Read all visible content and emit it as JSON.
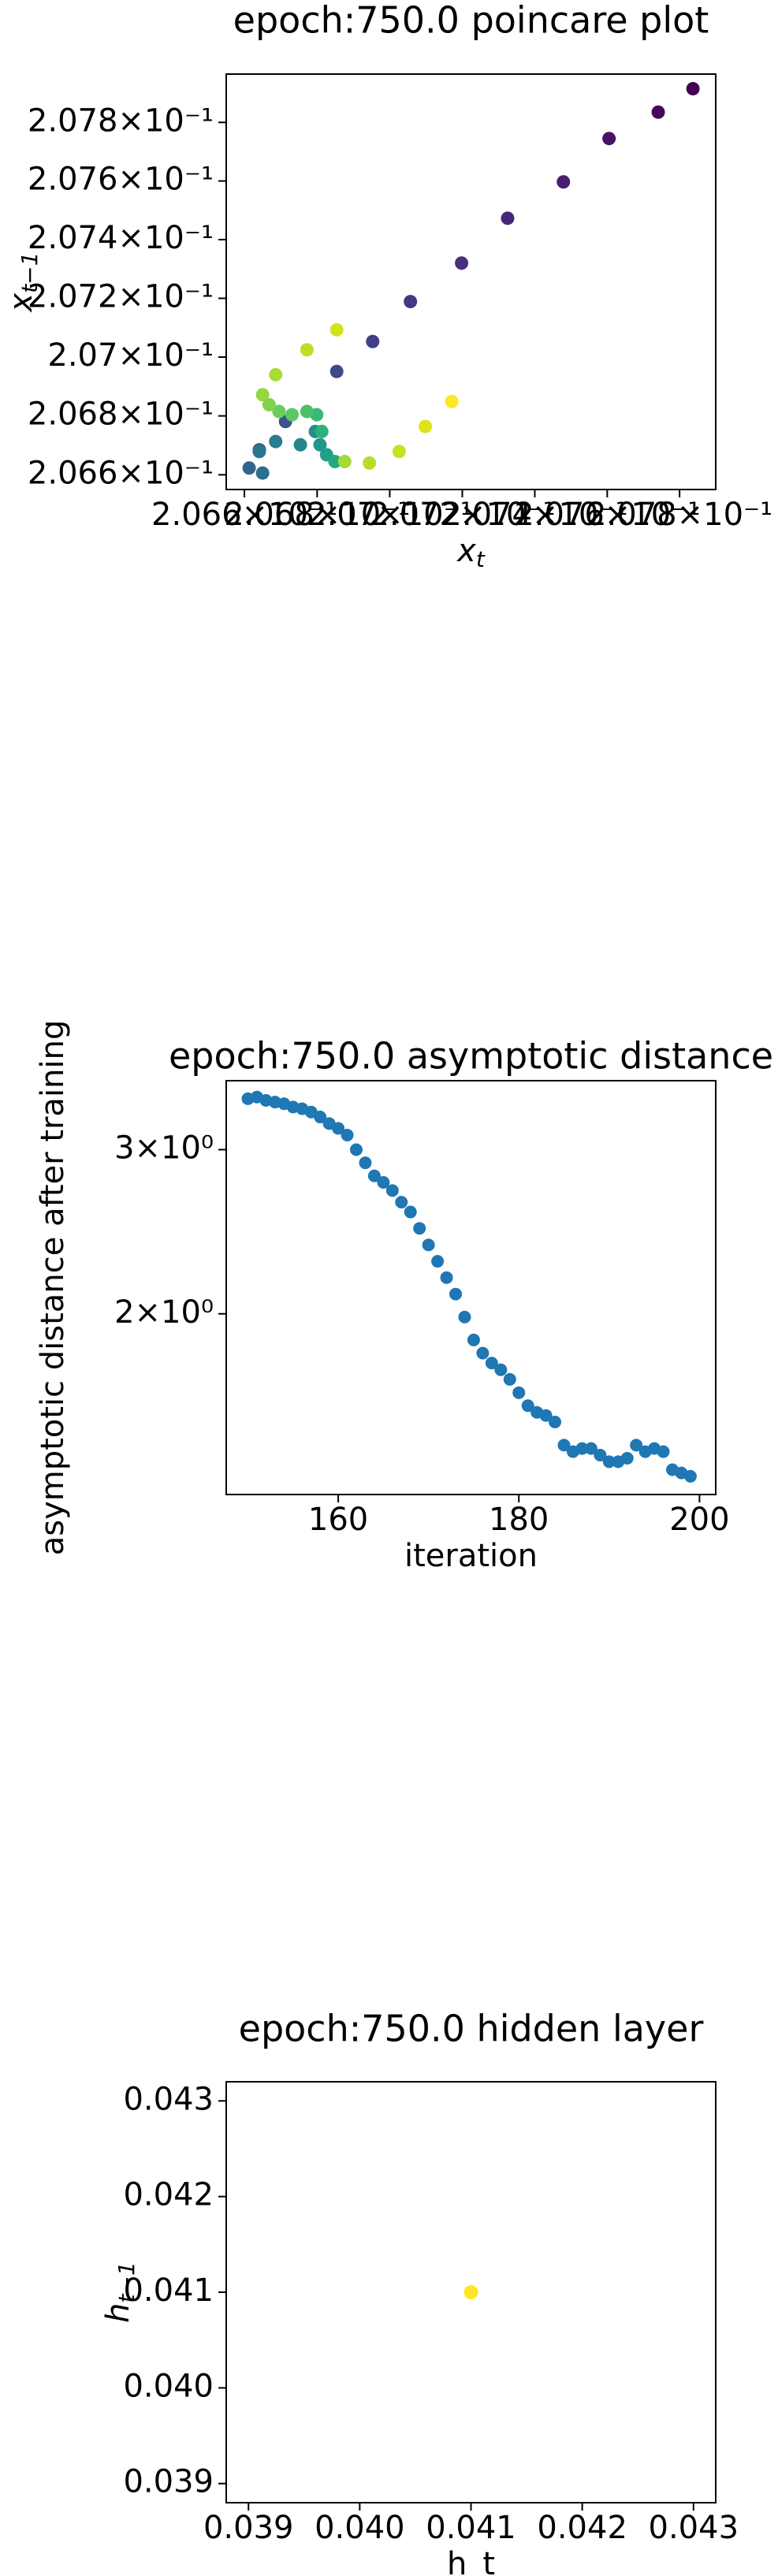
{
  "chart_data": [
    {
      "type": "scatter",
      "title": "epoch:750.0 poincare plot",
      "xlabel": "x_t",
      "ylabel": "x_{t-1}",
      "xscale": "log",
      "yscale": "log",
      "xlim": [
        0.20655,
        0.2079
      ],
      "ylim": [
        0.20655,
        0.207965
      ],
      "xticks": [
        {
          "value": 0.2066,
          "label": "2.066×10⁻¹"
        },
        {
          "value": 0.2068,
          "label": "2.068×10⁻¹"
        },
        {
          "value": 0.207,
          "label": "2.07×10⁻¹"
        },
        {
          "value": 0.2072,
          "label": "2.072×10⁻¹"
        },
        {
          "value": 0.2074,
          "label": "2.074×10⁻¹"
        },
        {
          "value": 0.2076,
          "label": "2.076×10⁻¹"
        },
        {
          "value": 0.2078,
          "label": "2.078×10⁻¹"
        }
      ],
      "yticks": [
        {
          "value": 0.2066,
          "label": "2.066×10⁻¹"
        },
        {
          "value": 0.2068,
          "label": "2.068×10⁻¹"
        },
        {
          "value": 0.207,
          "label": "2.07×10⁻¹"
        },
        {
          "value": 0.2072,
          "label": "2.072×10⁻¹"
        },
        {
          "value": 0.2074,
          "label": "2.074×10⁻¹"
        },
        {
          "value": 0.2076,
          "label": "2.076×10⁻¹"
        },
        {
          "value": 0.2078,
          "label": "2.078×10⁻¹"
        }
      ],
      "x": [
        0.207837,
        0.207741,
        0.207605,
        0.207479,
        0.207325,
        0.207198,
        0.207057,
        0.206953,
        0.206854,
        0.206713,
        0.206641,
        0.206613,
        0.20665,
        0.206641,
        0.206686,
        0.206754,
        0.206795,
        0.206808,
        0.206826,
        0.206849,
        0.206813,
        0.206799,
        0.206772,
        0.206731,
        0.206695,
        0.206668,
        0.20665,
        0.206686,
        0.206772,
        0.206854,
        0.206876,
        0.206944,
        0.207026,
        0.207098,
        0.207171
      ],
      "y": [
        0.207915,
        0.207835,
        0.207745,
        0.207597,
        0.207473,
        0.20732,
        0.207189,
        0.207053,
        0.206951,
        0.206781,
        0.206685,
        0.206623,
        0.206606,
        0.206679,
        0.206713,
        0.206702,
        0.206747,
        0.206702,
        0.206668,
        0.206645,
        0.206747,
        0.206804,
        0.206815,
        0.206804,
        0.206815,
        0.206838,
        0.206872,
        0.20694,
        0.207025,
        0.207093,
        0.206645,
        0.20664,
        0.206679,
        0.206764,
        0.206849
      ],
      "colors": [
        "#440154",
        "#46085c",
        "#471365",
        "#481d6f",
        "#482677",
        "#472f7d",
        "#453882",
        "#424086",
        "#3e4989",
        "#3a548c",
        "#365c8d",
        "#32658e",
        "#2e6e8e",
        "#2a768e",
        "#277e8e",
        "#23868d",
        "#208f8c",
        "#1f978b",
        "#21a087",
        "#27a882",
        "#2eb07c",
        "#3bb875",
        "#4ac06c",
        "#5ac864",
        "#6ccd5a",
        "#7fd34e",
        "#93d741",
        "#a8db34",
        "#bddf26",
        "#d2e21b",
        "#a5db36",
        "#b5de2b",
        "#c8e020",
        "#dce319",
        "#fde725"
      ]
    },
    {
      "type": "scatter",
      "title": "epoch:750.0 asymptotic distance",
      "xlabel": "iteration",
      "ylabel": "asymptotic distance after training",
      "yscale": "log",
      "xlim": [
        147.6,
        201.8
      ],
      "ylim": [
        1.28,
        3.557
      ],
      "xticks": [
        160,
        180,
        200
      ],
      "yticks": [
        {
          "value": 3,
          "label": "3×10⁰"
        },
        {
          "value": 2,
          "label": "2×10⁰"
        }
      ],
      "x": [
        150,
        151,
        152,
        153,
        154,
        155,
        156,
        157,
        158,
        159,
        160,
        161,
        162,
        163,
        164,
        165,
        166,
        167,
        168,
        169,
        170,
        171,
        172,
        173,
        174,
        175,
        176,
        177,
        178,
        179,
        180,
        181,
        182,
        183,
        184,
        185,
        186,
        187,
        188,
        189,
        190,
        191,
        192,
        193,
        194,
        195,
        196,
        197,
        198,
        199
      ],
      "y": [
        3.402,
        3.416,
        3.388,
        3.374,
        3.36,
        3.333,
        3.319,
        3.292,
        3.252,
        3.2,
        3.162,
        3.11,
        3.0,
        2.904,
        2.812,
        2.767,
        2.712,
        2.635,
        2.572,
        2.47,
        2.371,
        2.277,
        2.187,
        2.1,
        1.984,
        1.875,
        1.815,
        1.771,
        1.742,
        1.701,
        1.646,
        1.594,
        1.568,
        1.556,
        1.531,
        1.446,
        1.423,
        1.434,
        1.434,
        1.411,
        1.388,
        1.388,
        1.4,
        1.446,
        1.423,
        1.434,
        1.423,
        1.361,
        1.35,
        1.339
      ],
      "color": "#1f77b4"
    },
    {
      "type": "scatter",
      "title": "epoch:750.0 hidden layer",
      "xlabel": "h_t",
      "ylabel": "h_{t-1}",
      "xlim": [
        0.0388,
        0.0432
      ],
      "ylim": [
        0.0388,
        0.0432
      ],
      "xticks": [
        0.039,
        {
          "value": 0.04,
          "label": "0.040"
        },
        0.041,
        0.042,
        0.043
      ],
      "yticks": [
        0.039,
        {
          "value": 0.04,
          "label": "0.040"
        },
        0.041,
        0.042,
        0.043
      ],
      "x": [
        0.041
      ],
      "y": [
        0.041
      ],
      "colors": [
        "#fde725"
      ]
    }
  ]
}
